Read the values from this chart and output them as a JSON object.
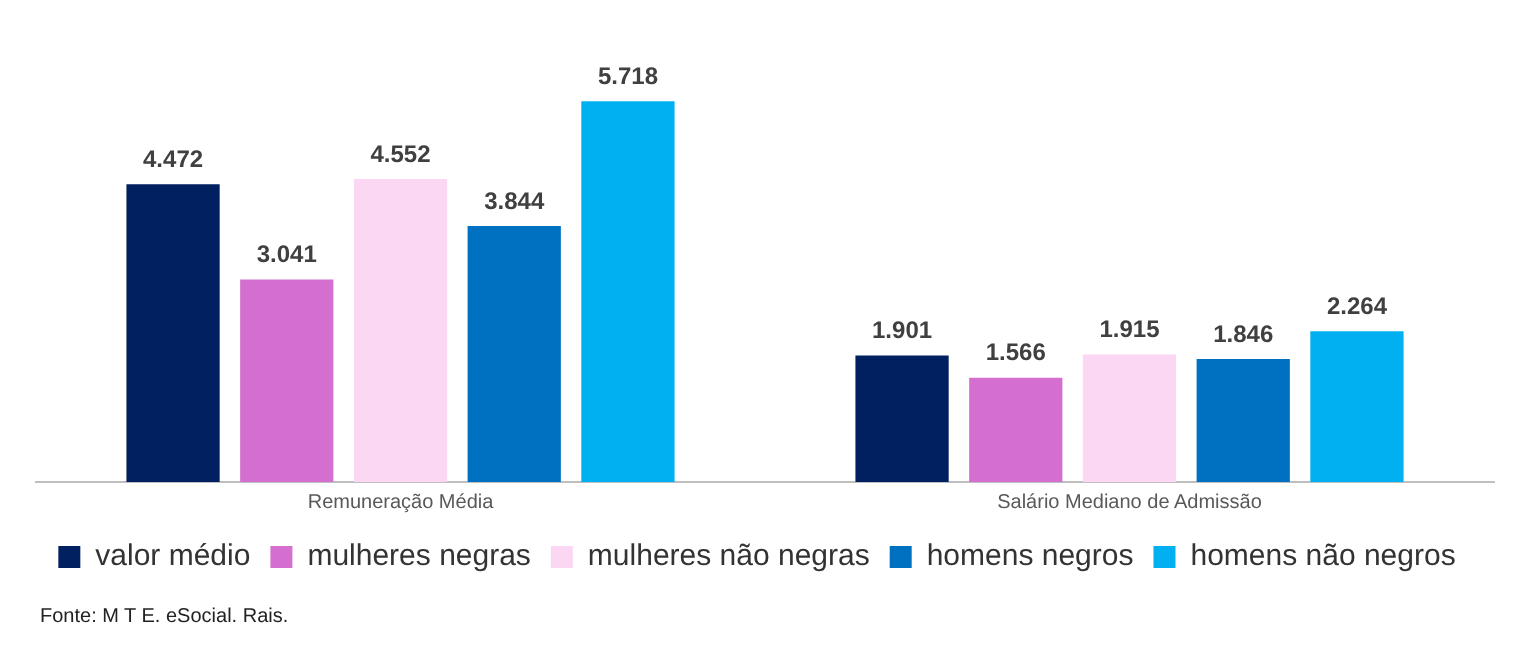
{
  "chart_data": {
    "type": "bar",
    "categories": [
      "Remuneração Média",
      "Salário Mediano de Admissão"
    ],
    "series": [
      {
        "name": "valor médio",
        "color": "#002060",
        "values": [
          4472,
          1901
        ],
        "value_labels": [
          "4.472",
          "1.901"
        ]
      },
      {
        "name": "mulheres negras",
        "color": "#d46fcf",
        "values": [
          3041,
          1566
        ],
        "value_labels": [
          "3.041",
          "1.566"
        ]
      },
      {
        "name": "mulheres não negras",
        "color": "#fbd7f4",
        "values": [
          4552,
          1915
        ],
        "value_labels": [
          "4.552",
          "1.915"
        ]
      },
      {
        "name": "homens negros",
        "color": "#0070c0",
        "values": [
          3844,
          1846
        ],
        "value_labels": [
          "3.844",
          "1.846"
        ]
      },
      {
        "name": "homens não negros",
        "color": "#00b0f0",
        "values": [
          5718,
          2264
        ],
        "value_labels": [
          "5.718",
          "2.264"
        ]
      }
    ],
    "legend": "bottom",
    "grid": false,
    "relative": false,
    "annotations": [
      "Fonte: M T E. eSocial. Rais."
    ]
  }
}
